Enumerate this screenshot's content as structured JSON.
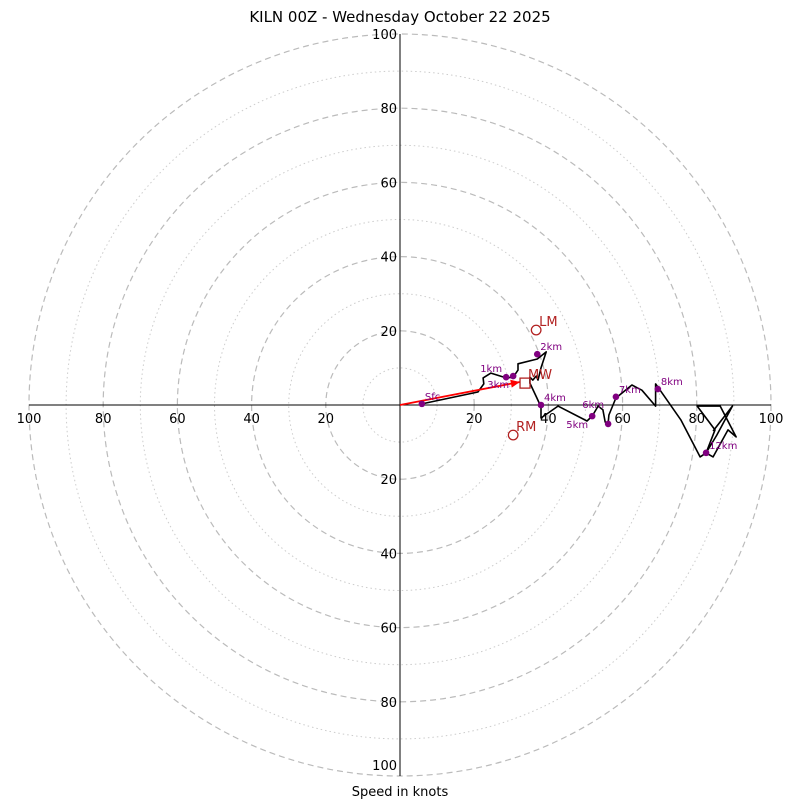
{
  "chart_data": {
    "type": "line",
    "subtype": "hodograph",
    "title": "KILN 00Z - Wednesday October 22 2025",
    "xlabel": "Speed in knots",
    "ylabel": "",
    "ring_major": [
      20,
      40,
      60,
      80,
      100
    ],
    "ring_minor": [
      10,
      30,
      50,
      70,
      90
    ],
    "ring_labels_left": [
      "100",
      "80",
      "60",
      "40",
      "20"
    ],
    "ring_labels_right": [
      "20",
      "40",
      "60",
      "80",
      "100"
    ],
    "ring_labels_top": [
      "100",
      "80",
      "60",
      "40",
      "20"
    ],
    "ring_labels_bottom": [
      "20",
      "40",
      "60",
      "80",
      "100"
    ],
    "max_speed": 100,
    "grid": true,
    "colors": {
      "trace": "#000000",
      "height_marker": "#800080",
      "storm_motion": "#b22222",
      "shear_vector": "#ff0000",
      "ring_major": "#bbbbbb",
      "ring_minor": "#cccccc"
    },
    "trace_uv": [
      [
        5.9,
        0.3
      ],
      [
        21.0,
        3.5
      ],
      [
        22.6,
        5.7
      ],
      [
        22.4,
        7.3
      ],
      [
        24.5,
        8.6
      ],
      [
        28.6,
        7.3
      ],
      [
        30.5,
        7.5
      ],
      [
        31.8,
        9.4
      ],
      [
        31.8,
        11.1
      ],
      [
        37.0,
        12.4
      ],
      [
        39.4,
        14.3
      ],
      [
        38.0,
        10.0
      ],
      [
        37.2,
        6.7
      ],
      [
        36.7,
        7.8
      ],
      [
        35.8,
        6.7
      ],
      [
        35.0,
        7.5
      ],
      [
        35.0,
        5.9
      ],
      [
        36.9,
        1.9
      ],
      [
        38.0,
        -0.5
      ],
      [
        38.0,
        -3.5
      ],
      [
        42.6,
        -0.3
      ],
      [
        50.4,
        -4.3
      ],
      [
        51.8,
        -3.0
      ],
      [
        53.4,
        -0.3
      ],
      [
        54.7,
        -1.3
      ],
      [
        55.3,
        -4.6
      ],
      [
        56.1,
        -5.1
      ],
      [
        56.3,
        -2.7
      ],
      [
        58.2,
        1.9
      ],
      [
        62.5,
        5.4
      ],
      [
        65.2,
        4.0
      ],
      [
        68.9,
        -0.3
      ],
      [
        68.9,
        5.7
      ],
      [
        70.1,
        4.0
      ],
      [
        75.7,
        -4.0
      ],
      [
        80.9,
        -14.0
      ],
      [
        82.5,
        -12.9
      ],
      [
        84.9,
        -6.7
      ],
      [
        80.1,
        -0.3
      ],
      [
        86.3,
        -0.3
      ],
      [
        90.6,
        -8.6
      ],
      [
        88.4,
        -6.7
      ],
      [
        84.4,
        -14.0
      ],
      [
        82.5,
        -12.9
      ],
      [
        85.4,
        -8.1
      ],
      [
        89.6,
        -0.3
      ],
      [
        84.4,
        -7.0
      ]
    ],
    "height_markers": [
      {
        "label": "Sfc",
        "u": 5.9,
        "v": 0.3
      },
      {
        "label": "1km",
        "u": 28.6,
        "v": 7.5
      },
      {
        "label": "3km",
        "u": 30.5,
        "v": 7.8
      },
      {
        "label": "2km",
        "u": 37.0,
        "v": 13.7
      },
      {
        "label": "4km",
        "u": 38.0,
        "v": 0.0
      },
      {
        "label": "5km",
        "u": 51.8,
        "v": -3.0
      },
      {
        "label": "6km",
        "u": 56.1,
        "v": -5.1
      },
      {
        "label": "7km",
        "u": 58.2,
        "v": 2.2
      },
      {
        "label": "8km",
        "u": 69.5,
        "v": 4.3
      },
      {
        "label": "12km",
        "u": 82.5,
        "v": -12.9
      }
    ],
    "storm_motion": [
      {
        "label": "LM",
        "u": 36.7,
        "v": 20.2,
        "marker": "circle"
      },
      {
        "label": "RM",
        "u": 30.5,
        "v": -8.1,
        "marker": "circle"
      },
      {
        "label": "MW",
        "u": 33.7,
        "v": 5.9,
        "marker": "square"
      }
    ],
    "shear_vector": {
      "from": [
        0,
        0
      ],
      "to": [
        32.3,
        6.2
      ]
    }
  }
}
